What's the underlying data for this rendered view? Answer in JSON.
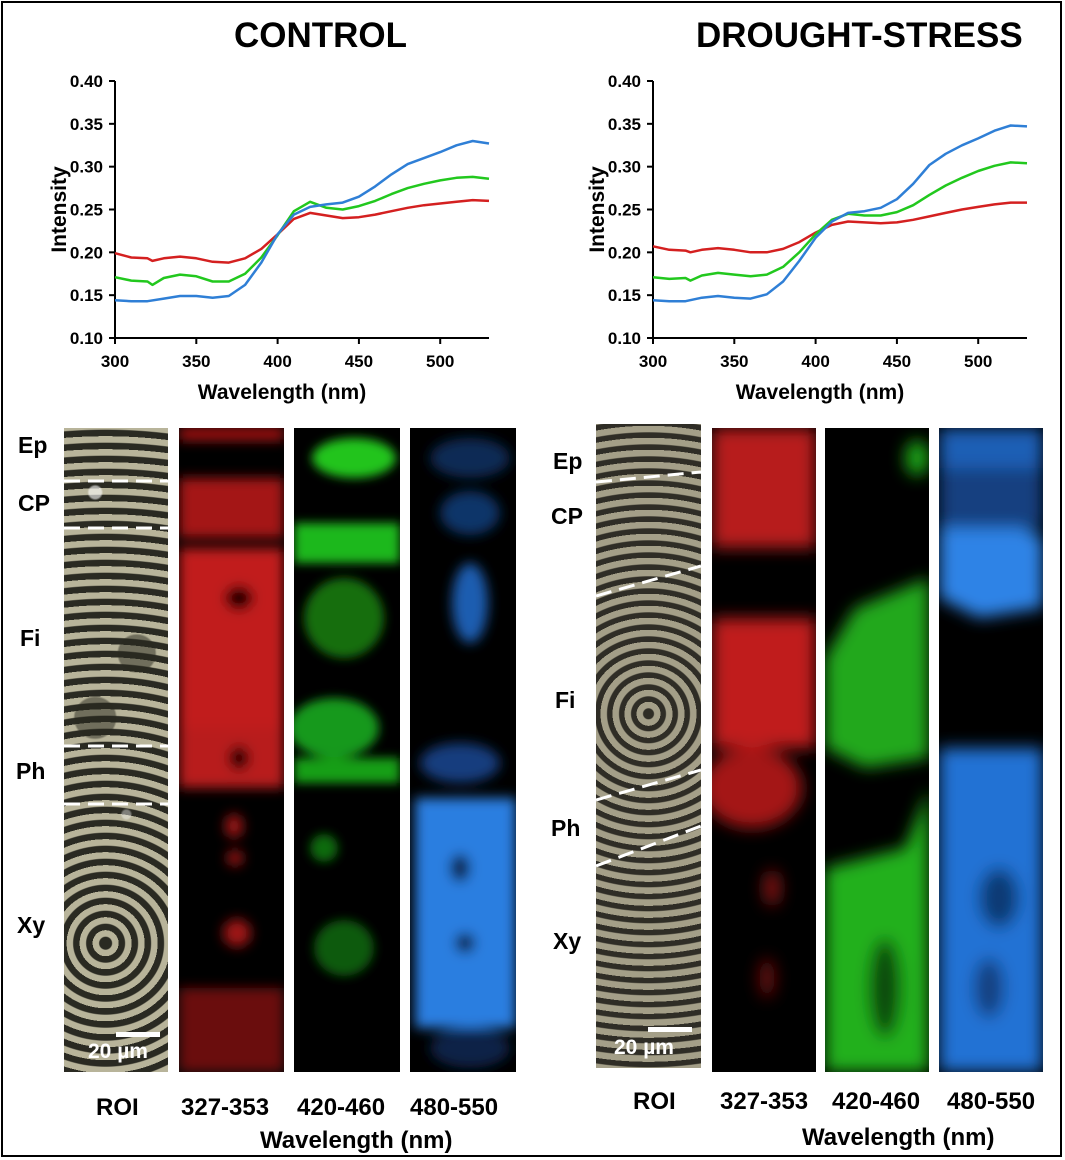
{
  "titles": {
    "control": "CONTROL",
    "drought": "DROUGHT-STRESS"
  },
  "series_colors": {
    "red": "#d42020",
    "green": "#22c81e",
    "blue": "#2f7fd6"
  },
  "chart_data": [
    {
      "type": "line",
      "title": "CONTROL",
      "xlabel": "Wavelength (nm)",
      "ylabel": "Intensity",
      "xlim": [
        300,
        530
      ],
      "ylim": [
        0.1,
        0.4
      ],
      "xticks": [
        300,
        350,
        400,
        450,
        500
      ],
      "yticks": [
        "0.10",
        "0.15",
        "0.20",
        "0.25",
        "0.30",
        "0.35",
        "0.40"
      ],
      "grid": false,
      "series": [
        {
          "color": "red",
          "x": [
            300,
            310,
            320,
            323,
            330,
            340,
            350,
            360,
            370,
            380,
            390,
            400,
            410,
            420,
            430,
            440,
            450,
            460,
            470,
            480,
            490,
            500,
            510,
            520,
            530
          ],
          "y": [
            0.199,
            0.194,
            0.193,
            0.19,
            0.193,
            0.195,
            0.193,
            0.189,
            0.188,
            0.193,
            0.204,
            0.221,
            0.239,
            0.246,
            0.243,
            0.24,
            0.241,
            0.244,
            0.248,
            0.252,
            0.255,
            0.257,
            0.259,
            0.261,
            0.26
          ]
        },
        {
          "color": "green",
          "x": [
            300,
            310,
            320,
            323,
            330,
            340,
            350,
            360,
            370,
            380,
            390,
            400,
            410,
            420,
            430,
            440,
            450,
            460,
            470,
            480,
            490,
            500,
            510,
            520,
            530
          ],
          "y": [
            0.171,
            0.167,
            0.166,
            0.162,
            0.17,
            0.174,
            0.172,
            0.166,
            0.166,
            0.175,
            0.194,
            0.22,
            0.248,
            0.259,
            0.252,
            0.25,
            0.254,
            0.26,
            0.268,
            0.275,
            0.28,
            0.284,
            0.287,
            0.288,
            0.286
          ]
        },
        {
          "color": "blue",
          "x": [
            300,
            310,
            320,
            330,
            340,
            350,
            360,
            370,
            380,
            390,
            400,
            410,
            420,
            430,
            440,
            450,
            460,
            470,
            480,
            490,
            500,
            510,
            520,
            530
          ],
          "y": [
            0.144,
            0.143,
            0.143,
            0.146,
            0.149,
            0.149,
            0.147,
            0.149,
            0.162,
            0.188,
            0.221,
            0.244,
            0.253,
            0.256,
            0.258,
            0.265,
            0.277,
            0.291,
            0.303,
            0.31,
            0.317,
            0.325,
            0.33,
            0.327
          ]
        }
      ]
    },
    {
      "type": "line",
      "title": "DROUGHT-STRESS",
      "xlabel": "Wavelength (nm)",
      "ylabel": "Intensity",
      "xlim": [
        300,
        530
      ],
      "ylim": [
        0.1,
        0.4
      ],
      "xticks": [
        300,
        350,
        400,
        450,
        500
      ],
      "yticks": [
        "0.10",
        "0.15",
        "0.20",
        "0.25",
        "0.30",
        "0.35",
        "0.40"
      ],
      "grid": false,
      "series": [
        {
          "color": "red",
          "x": [
            300,
            310,
            320,
            323,
            330,
            340,
            350,
            360,
            370,
            380,
            390,
            400,
            410,
            420,
            430,
            440,
            450,
            460,
            470,
            480,
            490,
            500,
            510,
            520,
            530
          ],
          "y": [
            0.207,
            0.203,
            0.202,
            0.2,
            0.203,
            0.205,
            0.203,
            0.2,
            0.2,
            0.204,
            0.212,
            0.223,
            0.232,
            0.236,
            0.235,
            0.234,
            0.235,
            0.238,
            0.242,
            0.246,
            0.25,
            0.253,
            0.256,
            0.258,
            0.258
          ]
        },
        {
          "color": "green",
          "x": [
            300,
            310,
            320,
            323,
            330,
            340,
            350,
            360,
            370,
            380,
            390,
            400,
            410,
            420,
            430,
            440,
            450,
            460,
            470,
            480,
            490,
            500,
            510,
            520,
            530
          ],
          "y": [
            0.171,
            0.169,
            0.17,
            0.167,
            0.173,
            0.176,
            0.174,
            0.172,
            0.174,
            0.183,
            0.2,
            0.221,
            0.238,
            0.245,
            0.243,
            0.243,
            0.247,
            0.255,
            0.267,
            0.278,
            0.287,
            0.295,
            0.301,
            0.305,
            0.304
          ]
        },
        {
          "color": "blue",
          "x": [
            300,
            310,
            320,
            330,
            340,
            350,
            360,
            370,
            380,
            390,
            400,
            410,
            420,
            430,
            440,
            450,
            460,
            470,
            480,
            490,
            500,
            510,
            520,
            530
          ],
          "y": [
            0.144,
            0.143,
            0.143,
            0.147,
            0.149,
            0.147,
            0.146,
            0.151,
            0.166,
            0.19,
            0.217,
            0.236,
            0.246,
            0.248,
            0.252,
            0.262,
            0.28,
            0.302,
            0.315,
            0.325,
            0.333,
            0.342,
            0.348,
            0.347
          ]
        }
      ]
    }
  ],
  "control_panels": {
    "regions": [
      "Ep",
      "CP",
      "Fi",
      "Ph",
      "Xy"
    ],
    "panel_labels": [
      "ROI",
      "327-353",
      "420-460",
      "480-550"
    ],
    "wavelength_label": "Wavelength (nm)",
    "scale_bar": "20 µm"
  },
  "drought_panels": {
    "regions": [
      "Ep",
      "CP",
      "Fi",
      "Ph",
      "Xy"
    ],
    "panel_labels": [
      "ROI",
      "327-353",
      "420-460",
      "480-550"
    ],
    "wavelength_label": "Wavelength (nm)",
    "scale_bar": "20 µm"
  }
}
